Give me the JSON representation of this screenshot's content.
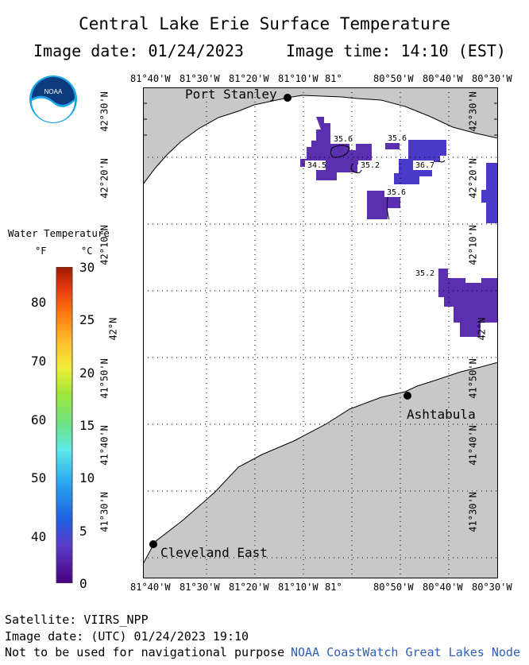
{
  "header": {
    "title": "Central Lake Erie Surface Temperature",
    "image_date": "Image date: 01/24/2023",
    "image_time": "Image time: 14:10 (EST)"
  },
  "logo": {
    "icon": "noaa-logo-icon",
    "text": "NOAA"
  },
  "legend": {
    "title": "Water Temperature",
    "unit_f": "°F",
    "unit_c": "°C",
    "f_ticks": [
      "80",
      "70",
      "60",
      "50",
      "40"
    ],
    "c_ticks": [
      "30",
      "25",
      "20",
      "15",
      "10",
      "5",
      "0"
    ],
    "f_tick_values": [
      80,
      70,
      60,
      50,
      40
    ],
    "c_tick_values": [
      30,
      25,
      20,
      15,
      10,
      5,
      0
    ]
  },
  "map": {
    "lon_labels": [
      "81°40'W",
      "81°30'W",
      "81°20'W",
      "81°10'W",
      "81°",
      "80°50'W",
      "80°40'W",
      "80°30'W"
    ],
    "lat_labels": [
      "42°30'N",
      "42°20'N",
      "42°10'N",
      "42°N",
      "41°50'N",
      "41°40'N",
      "41°30'N"
    ],
    "places": [
      {
        "name": "Port Stanley"
      },
      {
        "name": "Ashtabula"
      },
      {
        "name": "Cleveland East"
      }
    ],
    "contour_labels": [
      "35.6",
      "35.6",
      "34.5",
      "35.2",
      "36.7",
      "35.6",
      "35.2"
    ],
    "colors": {
      "land": "#c8c8c8",
      "water": "#ffffff",
      "patch": "#5b2fb0",
      "patch_dark": "#4a1fa0",
      "patch_blue": "#4b39c8"
    }
  },
  "footer": {
    "satellite": "Satellite: VIIRS_NPP",
    "utc_date": "Image date: (UTC) 01/24/2023  19:10",
    "disclaimer": "Not to be used for navigational purpose",
    "credit": "NOAA CoastWatch Great Lakes Node"
  }
}
